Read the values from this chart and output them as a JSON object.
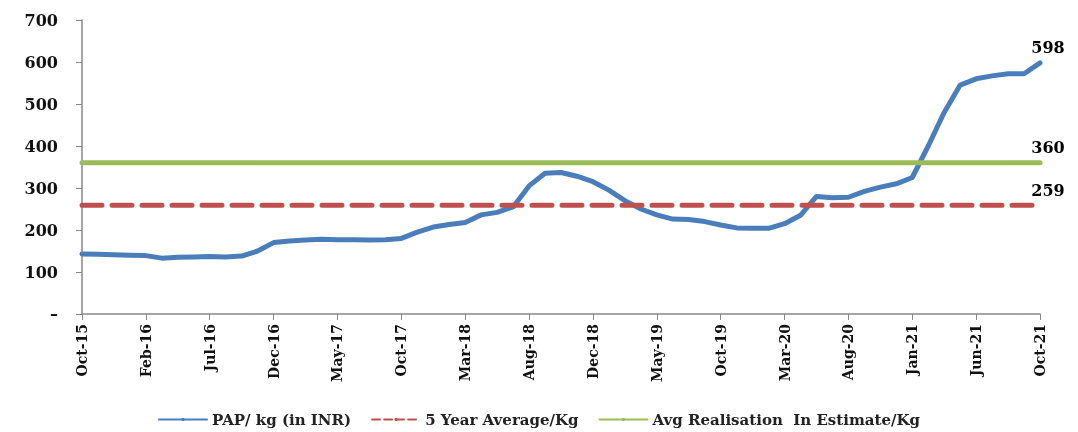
{
  "chart_data": {
    "type": "line",
    "categories": [
      "Oct-15",
      null,
      null,
      null,
      "Feb-16",
      null,
      null,
      null,
      "Jul-16",
      null,
      null,
      null,
      "Dec-16",
      null,
      null,
      null,
      "May-17",
      null,
      null,
      null,
      "Oct-17",
      null,
      null,
      null,
      "Mar-18",
      null,
      null,
      null,
      "Aug-18",
      null,
      null,
      null,
      "Dec-18",
      null,
      null,
      null,
      "May-19",
      null,
      null,
      null,
      "Oct-19",
      null,
      null,
      null,
      "Mar-20",
      null,
      null,
      null,
      "Aug-20",
      null,
      null,
      null,
      "Jan-21",
      null,
      null,
      null,
      "Jun-21",
      null,
      null,
      null,
      "Oct-21"
    ],
    "series": [
      {
        "name": "PAP/ kg (in INR)",
        "color": "#4a7ebb",
        "values": [
          143,
          142,
          141,
          140,
          139,
          133,
          135,
          136,
          137,
          136,
          138,
          150,
          170,
          174,
          176,
          178,
          177,
          177,
          176,
          177,
          180,
          195,
          207,
          213,
          218,
          236,
          242,
          255,
          305,
          335,
          337,
          328,
          315,
          295,
          270,
          250,
          236,
          226,
          225,
          220,
          212,
          205,
          204,
          204,
          215,
          235,
          280,
          277,
          278,
          292,
          302,
          310,
          325,
          400,
          480,
          545,
          560,
          567,
          572,
          572,
          598
        ],
        "value_labels": [
          null,
          null,
          null,
          null,
          null,
          null,
          null,
          null,
          null,
          null,
          null,
          null,
          null,
          null,
          null,
          null,
          null,
          null,
          null,
          null,
          null,
          null,
          null,
          null,
          null,
          null,
          null,
          null,
          null,
          null,
          null,
          null,
          null,
          null,
          null,
          null,
          null,
          null,
          null,
          null,
          null,
          null,
          null,
          null,
          null,
          null,
          null,
          null,
          null,
          null,
          null,
          null,
          null,
          null,
          null,
          null,
          null,
          null,
          null,
          null,
          "598"
        ]
      },
      {
        "name": "5 Year Average/Kg",
        "color": "#c0504d",
        "line_style": "dashed",
        "values": [
          259,
          259,
          259,
          259,
          259,
          259,
          259,
          259,
          259,
          259,
          259,
          259,
          259,
          259,
          259,
          259,
          259,
          259,
          259,
          259,
          259,
          259,
          259,
          259,
          259,
          259,
          259,
          259,
          259,
          259,
          259,
          259,
          259,
          259,
          259,
          259,
          259,
          259,
          259,
          259,
          259,
          259,
          259,
          259,
          259,
          259,
          259,
          259,
          259,
          259,
          259,
          259,
          259,
          259,
          259,
          259,
          259,
          259,
          259,
          259,
          259
        ],
        "value_labels": [
          null,
          null,
          null,
          null,
          null,
          null,
          null,
          null,
          null,
          null,
          null,
          null,
          null,
          null,
          null,
          null,
          null,
          null,
          null,
          null,
          null,
          null,
          null,
          null,
          null,
          null,
          null,
          null,
          null,
          null,
          null,
          null,
          null,
          null,
          null,
          null,
          null,
          null,
          null,
          null,
          null,
          null,
          null,
          null,
          null,
          null,
          null,
          null,
          null,
          null,
          null,
          null,
          null,
          null,
          null,
          null,
          null,
          null,
          null,
          null,
          "259"
        ]
      },
      {
        "name": "Avg Realisation  In Estimate/Kg",
        "color": "#9bbb59",
        "values": [
          360,
          360,
          360,
          360,
          360,
          360,
          360,
          360,
          360,
          360,
          360,
          360,
          360,
          360,
          360,
          360,
          360,
          360,
          360,
          360,
          360,
          360,
          360,
          360,
          360,
          360,
          360,
          360,
          360,
          360,
          360,
          360,
          360,
          360,
          360,
          360,
          360,
          360,
          360,
          360,
          360,
          360,
          360,
          360,
          360,
          360,
          360,
          360,
          360,
          360,
          360,
          360,
          360,
          360,
          360,
          360,
          360,
          360,
          360,
          360,
          360
        ],
        "value_labels": [
          null,
          null,
          null,
          null,
          null,
          null,
          null,
          null,
          null,
          null,
          null,
          null,
          null,
          null,
          null,
          null,
          null,
          null,
          null,
          null,
          null,
          null,
          null,
          null,
          null,
          null,
          null,
          null,
          null,
          null,
          null,
          null,
          null,
          null,
          null,
          null,
          null,
          null,
          null,
          null,
          null,
          null,
          null,
          null,
          null,
          null,
          null,
          null,
          null,
          null,
          null,
          null,
          null,
          null,
          null,
          null,
          null,
          null,
          null,
          null,
          "360"
        ]
      }
    ],
    "ylim": [
      0,
      700
    ],
    "yticks": [
      {
        "value": 0,
        "label": "–"
      },
      100,
      200,
      300,
      400,
      500,
      600,
      700
    ],
    "grid": false,
    "legend": "bottom",
    "marker": "none",
    "line_style": "solid"
  }
}
